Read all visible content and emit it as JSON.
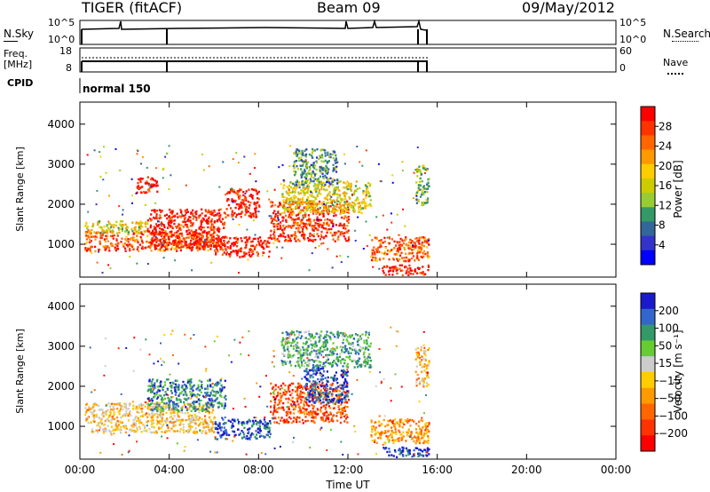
{
  "header": {
    "radar": "TIGER (fitACF)",
    "beam": "Beam 09",
    "date": "09/May/2012"
  },
  "strips": {
    "nsky_label": "N.Sky",
    "nsky_ticks": [
      "10^5",
      "10^0"
    ],
    "nsearch_label": "N.Search",
    "nsearch_ticks": [
      "10^5",
      "10^0"
    ],
    "freq_label": "Freq.",
    "freq_unit": "[MHz]",
    "freq_ticks": [
      "18",
      "8"
    ],
    "nave_label": "Nave",
    "nave_ticks": [
      "60",
      "0"
    ],
    "cpid_label": "CPID",
    "cpid_value": "normal 150"
  },
  "colorbars": {
    "power": {
      "label": "Power [dB]",
      "ticks": [
        "28",
        "24",
        "20",
        "16",
        "12",
        "8",
        "4"
      ],
      "colors": [
        "#ff0000",
        "#ff3300",
        "#ff6600",
        "#ff9900",
        "#ffcc00",
        "#cccc00",
        "#99cc33",
        "#339966",
        "#336699",
        "#3333cc",
        "#0000ff"
      ]
    },
    "velocity": {
      "label": "Velocity [m s⁻¹]",
      "ticks": [
        "200",
        "100",
        "50",
        "15",
        "−15",
        "−50",
        "−100",
        "−200"
      ],
      "colors": [
        "#1a1acc",
        "#3366cc",
        "#339966",
        "#66cc33",
        "#cccccc",
        "#ffcc00",
        "#ff9900",
        "#ff6600",
        "#ff3300",
        "#ff0000"
      ]
    }
  },
  "chart_data": [
    {
      "type": "heatmap",
      "name": "Power",
      "xlabel": "",
      "ylabel": "Slant Range [km]",
      "x_ticks": [
        "00:00",
        "04:00",
        "08:00",
        "12:00",
        "16:00",
        "20:00",
        "00:00"
      ],
      "xlim_hours": [
        0,
        24
      ],
      "y_ticks": [
        1000,
        2000,
        3000,
        4000
      ],
      "ylim_km": [
        180,
        4550
      ],
      "colorbar_range_db": [
        0,
        30
      ],
      "regions": [
        {
          "t": [
            0.2,
            6.0
          ],
          "r": [
            850,
            1350
          ],
          "dB": 24
        },
        {
          "t": [
            0.2,
            3.0
          ],
          "r": [
            1300,
            1600
          ],
          "dB": 16
        },
        {
          "t": [
            3.0,
            6.5
          ],
          "r": [
            900,
            1900
          ],
          "dB": 28
        },
        {
          "t": [
            6.0,
            8.5
          ],
          "r": [
            700,
            1200
          ],
          "dB": 28
        },
        {
          "t": [
            6.5,
            8.0
          ],
          "r": [
            1700,
            2400
          ],
          "dB": 28
        },
        {
          "t": [
            2.5,
            3.5
          ],
          "r": [
            2300,
            2700
          ],
          "dB": 28
        },
        {
          "t": [
            8.5,
            12.0
          ],
          "r": [
            1100,
            2100
          ],
          "dB": 26
        },
        {
          "t": [
            9.0,
            13.0
          ],
          "r": [
            1800,
            2600
          ],
          "dB": 16
        },
        {
          "t": [
            9.5,
            11.5
          ],
          "r": [
            2500,
            3400
          ],
          "dB": 10
        },
        {
          "t": [
            13.0,
            15.6
          ],
          "r": [
            600,
            1200
          ],
          "dB": 24
        },
        {
          "t": [
            13.5,
            15.6
          ],
          "r": [
            250,
            500
          ],
          "dB": 28
        },
        {
          "t": [
            15.0,
            15.6
          ],
          "r": [
            2000,
            3000
          ],
          "dB": 12
        }
      ]
    },
    {
      "type": "heatmap",
      "name": "Velocity",
      "xlabel": "Time UT",
      "ylabel": "Slant Range [km]",
      "x_ticks": [
        "00:00",
        "04:00",
        "08:00",
        "12:00",
        "16:00",
        "20:00",
        "00:00"
      ],
      "xlim_hours": [
        0,
        24
      ],
      "y_ticks": [
        1000,
        2000,
        3000,
        4000
      ],
      "ylim_km": [
        180,
        4550
      ],
      "colorbar_range_ms": [
        -250,
        250
      ],
      "regions": [
        {
          "t": [
            0.2,
            6.0
          ],
          "r": [
            850,
            1600
          ],
          "v": -30
        },
        {
          "t": [
            3.0,
            6.5
          ],
          "r": [
            1400,
            2200
          ],
          "v": 150
        },
        {
          "t": [
            6.0,
            8.5
          ],
          "r": [
            700,
            1200
          ],
          "v": 180
        },
        {
          "t": [
            8.5,
            12.0
          ],
          "r": [
            1100,
            2100
          ],
          "v": -150
        },
        {
          "t": [
            10.0,
            12.0
          ],
          "r": [
            1600,
            2500
          ],
          "v": 200
        },
        {
          "t": [
            9.0,
            13.0
          ],
          "r": [
            2500,
            3400
          ],
          "v": 100
        },
        {
          "t": [
            13.0,
            15.6
          ],
          "r": [
            600,
            1200
          ],
          "v": -80
        },
        {
          "t": [
            13.5,
            15.6
          ],
          "r": [
            250,
            500
          ],
          "v": 200
        },
        {
          "t": [
            15.0,
            15.6
          ],
          "r": [
            2000,
            3000
          ],
          "v": -50
        }
      ]
    }
  ]
}
